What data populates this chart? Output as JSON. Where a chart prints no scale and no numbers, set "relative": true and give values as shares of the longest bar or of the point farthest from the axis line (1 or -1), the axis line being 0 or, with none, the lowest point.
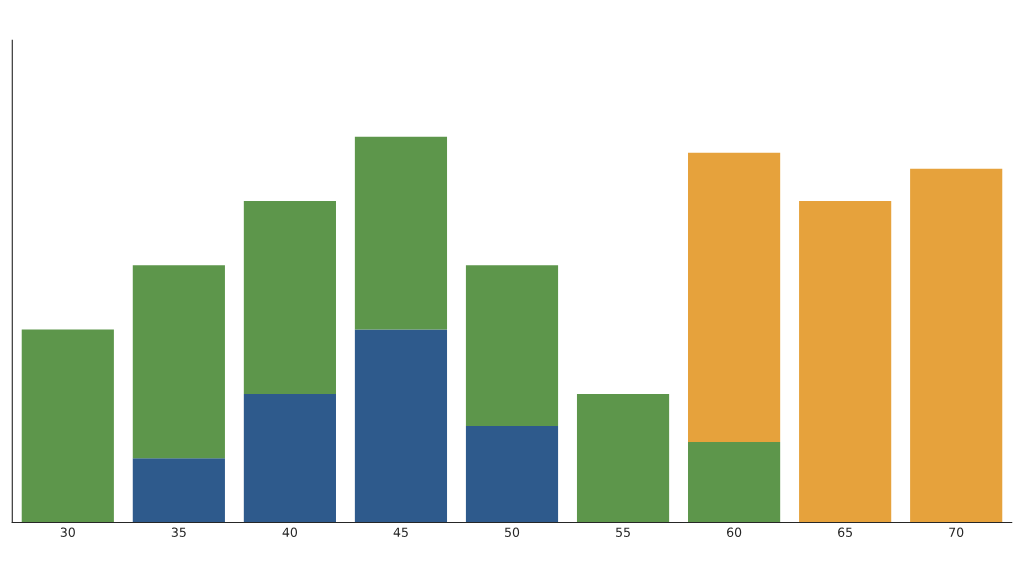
{
  "chart_data": {
    "type": "bar",
    "stacked": true,
    "relative": true,
    "categories": [
      "30",
      "35",
      "40",
      "45",
      "50",
      "55",
      "60",
      "65",
      "70"
    ],
    "series": [
      {
        "color": "#2e5a8c",
        "values": [
          null,
          0.1667,
          0.3333,
          0.5,
          0.25,
          null,
          null,
          null,
          null
        ]
      },
      {
        "color": "#5d964b",
        "values": [
          0.5,
          0.5,
          0.5,
          0.5,
          0.4167,
          0.3333,
          0.2083,
          null,
          null
        ]
      },
      {
        "color": "#e6a23c",
        "values": [
          null,
          null,
          null,
          null,
          null,
          null,
          0.75,
          0.8333,
          0.9167
        ]
      }
    ],
    "grid": false
  }
}
